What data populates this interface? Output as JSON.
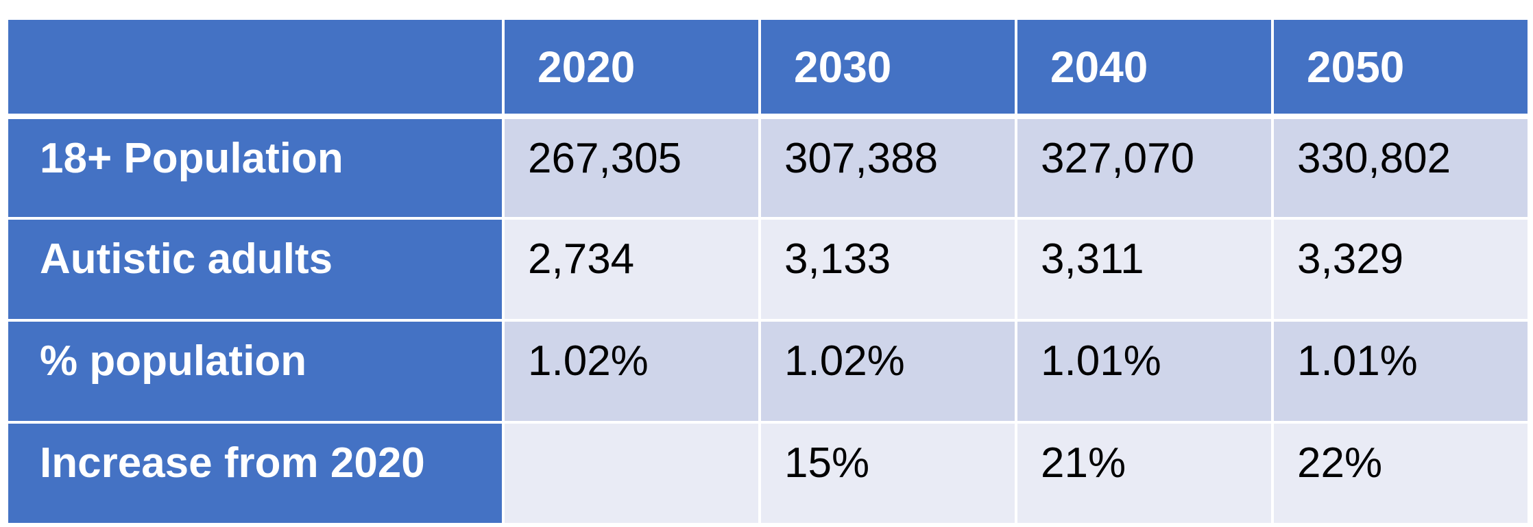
{
  "table": {
    "corner": "",
    "headers": [
      "2020",
      "2030",
      "2040",
      "2050"
    ],
    "rows": [
      {
        "label": "18+ Population",
        "values": [
          "267,305",
          "307,388",
          "327,070",
          "330,802"
        ]
      },
      {
        "label": "Autistic adults",
        "values": [
          "2,734",
          "3,133",
          "3,311",
          "3,329"
        ]
      },
      {
        "label": "% population",
        "values": [
          "1.02%",
          "1.02%",
          "1.01%",
          "1.01%"
        ]
      },
      {
        "label": "Increase from 2020",
        "values": [
          "",
          "15%",
          "21%",
          "22%"
        ]
      }
    ]
  },
  "colors": {
    "header_bg": "#4472C4",
    "band_dark": "#CFD5EA",
    "band_light": "#E9EBF5",
    "header_text": "#FFFFFF",
    "body_text": "#000000"
  }
}
